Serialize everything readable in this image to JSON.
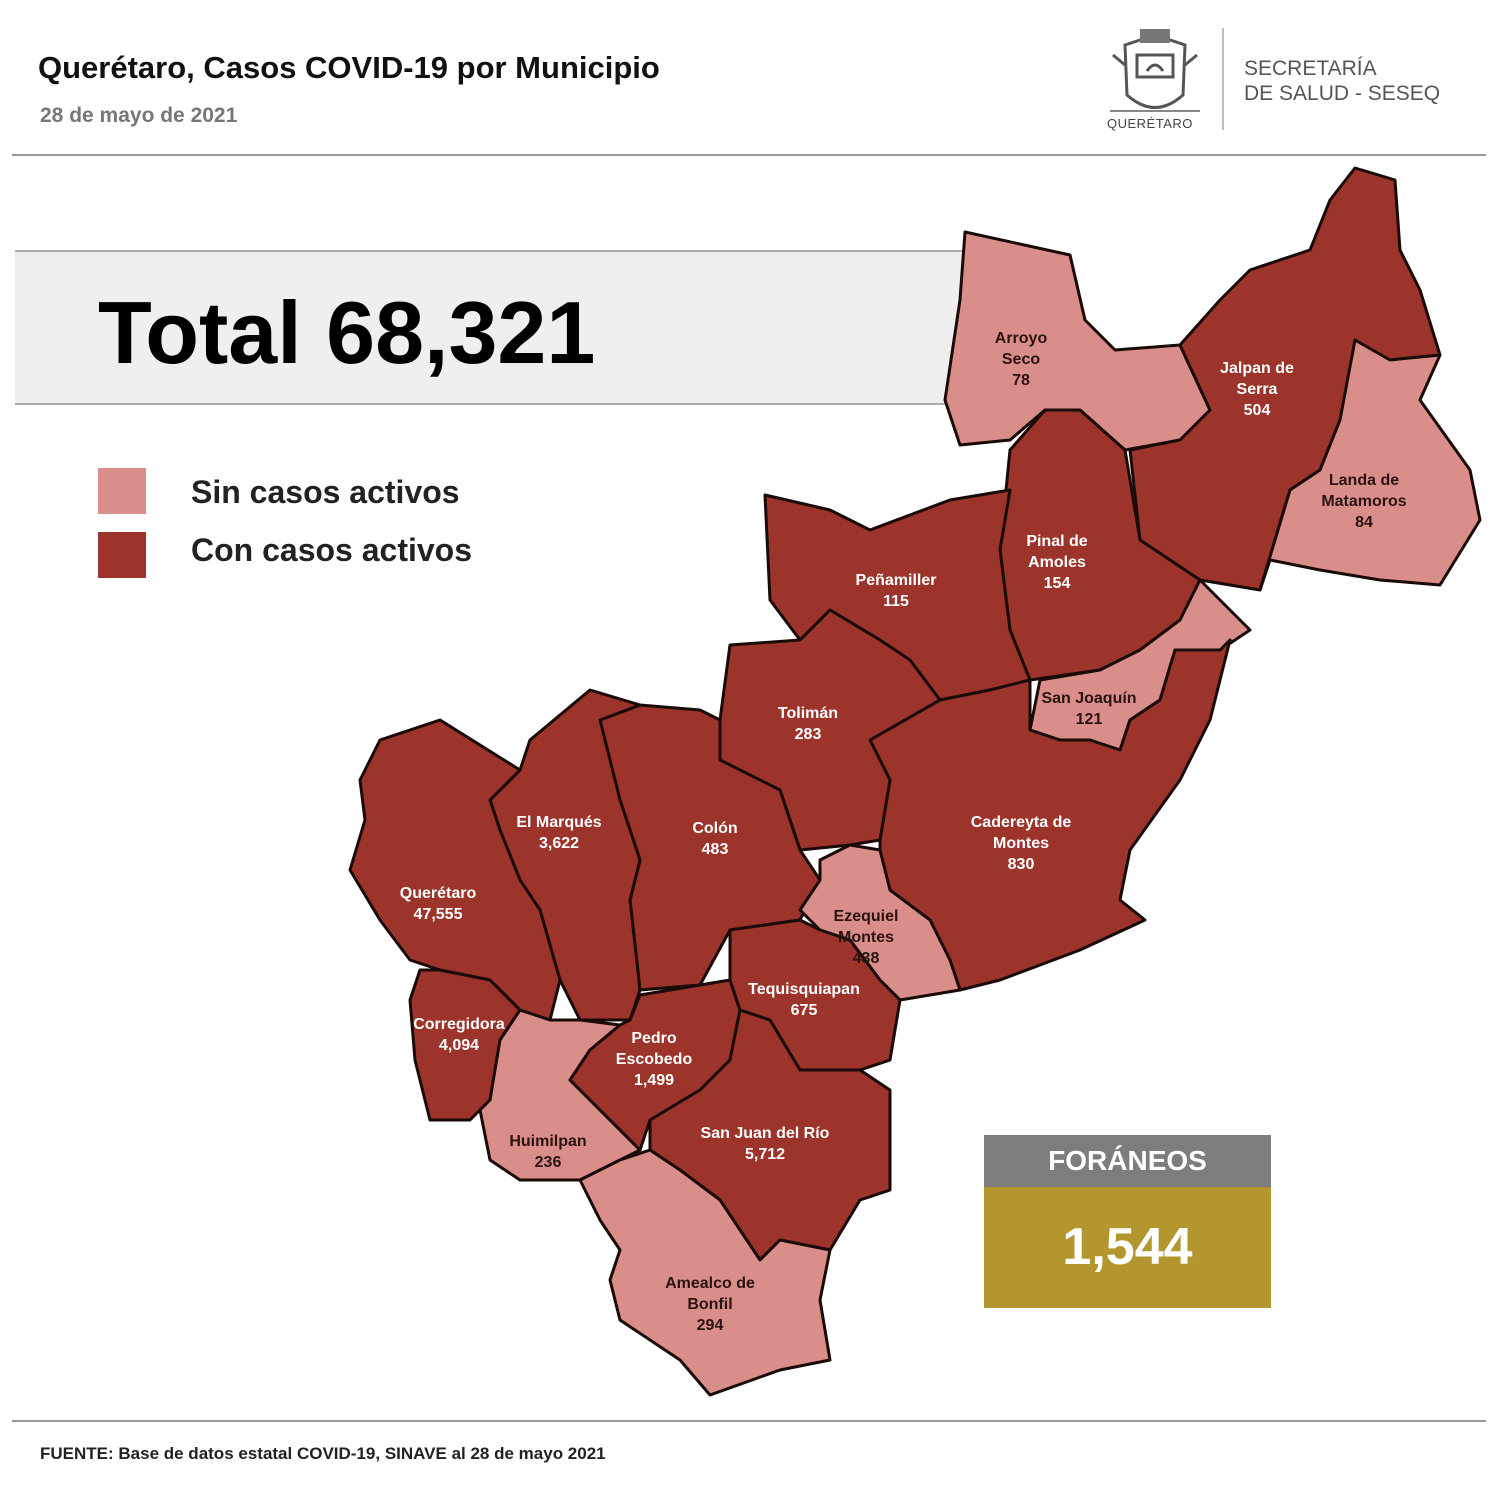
{
  "header": {
    "title": "Querétaro, Casos COVID-19 por Municipio",
    "date": "28 de mayo de 2021",
    "logo_text": "QUERÉTARO",
    "secretaria_line1": "SECRETARÍA",
    "secretaria_line2": "DE SALUD - SESEQ"
  },
  "total_label": "Total 68,321",
  "legend": [
    {
      "label": "Sin casos activos",
      "color": "#d98e8a"
    },
    {
      "label": "Con casos activos",
      "color": "#9c342b"
    }
  ],
  "municipalities": {
    "arroyo_seco": {
      "l1": "Arroyo",
      "l2": "Seco",
      "count": "78",
      "status": "sin"
    },
    "jalpan": {
      "l1": "Jalpan de",
      "l2": "Serra",
      "count": "504",
      "status": "con"
    },
    "landa": {
      "l1": "Landa de",
      "l2": "Matamoros",
      "count": "84",
      "status": "sin"
    },
    "pinal": {
      "l1": "Pinal de",
      "l2": "Amoles",
      "count": "154",
      "status": "con"
    },
    "penamiller": {
      "l1": "Peñamiller",
      "count": "115",
      "status": "con"
    },
    "san_joaquin": {
      "l1": "San Joaquín",
      "count": "121",
      "status": "sin"
    },
    "toliman": {
      "l1": "Tolimán",
      "count": "283",
      "status": "con"
    },
    "cadereyta": {
      "l1": "Cadereyta de",
      "l2": "Montes",
      "count": "830",
      "status": "con"
    },
    "colon": {
      "l1": "Colón",
      "count": "483",
      "status": "con"
    },
    "el_marques": {
      "l1": "El  Marqués",
      "count": "3,622",
      "status": "con"
    },
    "queretaro": {
      "l1": "Querétaro",
      "count": "47,555",
      "status": "con"
    },
    "ezequiel_montes": {
      "l1": "Ezequiel",
      "l2": "Montes",
      "count": "438",
      "status": "sin"
    },
    "tequisquiapan": {
      "l1": "Tequisquiapan",
      "count": "675",
      "status": "con"
    },
    "corregidora": {
      "l1": "Corregidora",
      "count": "4,094",
      "status": "con"
    },
    "pedro_escobedo": {
      "l1": "Pedro",
      "l2": "Escobedo",
      "count": "1,499",
      "status": "con"
    },
    "huimilpan": {
      "l1": "Huimilpan",
      "count": "236",
      "status": "sin"
    },
    "san_juan": {
      "l1": "San Juan del Río",
      "count": "5,712",
      "status": "con"
    },
    "amealco": {
      "l1": "Amealco de",
      "l2": "Bonfil",
      "count": "294",
      "status": "sin"
    }
  },
  "foraneos": {
    "label": "FORÁNEOS",
    "value": "1,544"
  },
  "source": "FUENTE: Base de datos estatal COVID-19, SINAVE al 28 de mayo 2021"
}
